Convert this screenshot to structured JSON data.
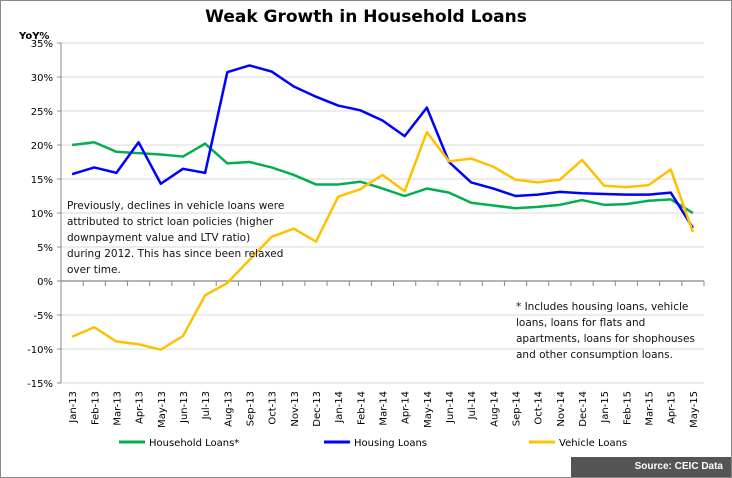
{
  "chart_data": {
    "type": "line",
    "title": "Weak Growth in Household Loans",
    "ylabel": "YoY%",
    "ylim": [
      -15,
      35
    ],
    "yticks": [
      "35%",
      "30%",
      "25%",
      "20%",
      "15%",
      "10%",
      "5%",
      "0%",
      "-5%",
      "-10%",
      "-15%"
    ],
    "grid": true,
    "legend": "bottom",
    "categories": [
      "Jan-13",
      "Feb-13",
      "Mar-13",
      "Apr-13",
      "May-13",
      "Jun-13",
      "Jul-13",
      "Aug-13",
      "Sep-13",
      "Oct-13",
      "Nov-13",
      "Dec-13",
      "Jan-14",
      "Feb-14",
      "Mar-14",
      "Apr-14",
      "May-14",
      "Jun-14",
      "Jul-14",
      "Aug-14",
      "Sep-14",
      "Oct-14",
      "Nov-14",
      "Dec-14",
      "Jan-15",
      "Feb-15",
      "Mar-15",
      "Apr-15",
      "May-15"
    ],
    "series": [
      {
        "name": "Household Loans*",
        "color": "#00b050",
        "values": [
          20.0,
          20.4,
          19.0,
          18.8,
          18.6,
          18.3,
          20.2,
          17.3,
          17.5,
          16.7,
          15.6,
          14.2,
          14.2,
          14.6,
          13.6,
          12.5,
          13.6,
          13.0,
          11.5,
          11.1,
          10.7,
          10.9,
          11.2,
          11.9,
          11.2,
          11.3,
          11.8,
          12.0,
          10.0
        ]
      },
      {
        "name": "Housing Loans",
        "color": "#0000ff",
        "values": [
          15.7,
          16.7,
          15.9,
          20.4,
          14.3,
          16.5,
          15.9,
          30.7,
          31.7,
          30.8,
          28.6,
          27.1,
          25.8,
          25.1,
          23.6,
          21.3,
          25.5,
          17.5,
          14.5,
          13.6,
          12.5,
          12.7,
          13.1,
          12.9,
          12.8,
          12.7,
          12.7,
          13.0,
          7.8
        ]
      },
      {
        "name": "Vehicle Loans",
        "color": "#ffc000",
        "values": [
          -8.2,
          -6.8,
          -8.9,
          -9.3,
          -10.1,
          -8.1,
          -2.1,
          -0.3,
          3.1,
          6.5,
          7.7,
          5.8,
          12.4,
          13.5,
          15.6,
          13.2,
          21.9,
          17.6,
          18.0,
          16.8,
          14.9,
          14.5,
          14.9,
          17.8,
          14.0,
          13.8,
          14.1,
          16.4,
          7.2
        ]
      }
    ],
    "annotations": [
      "Previously, declines in vehicle loans were attributed to strict loan policies (higher downpayment value and LTV ratio) during 2012. This has since been relaxed over time.",
      "* Includes housing loans, vehicle loans, loans for flats and apartments, loans for shophouses and other consumption loans."
    ],
    "source": "Source: CEIC Data"
  }
}
